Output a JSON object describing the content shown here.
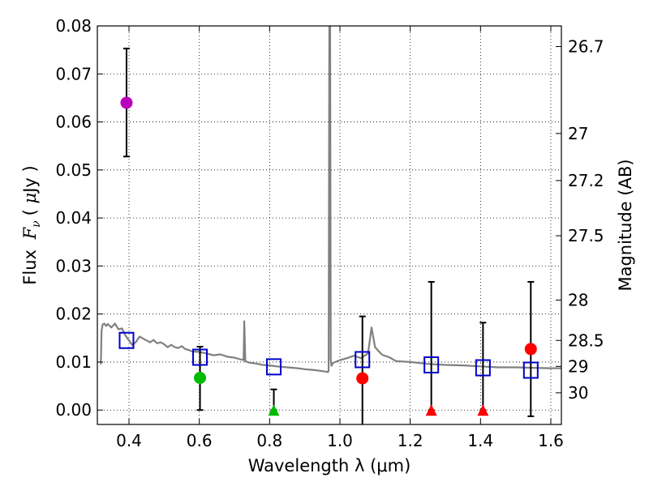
{
  "chart_data": {
    "type": "scatter",
    "xlabel": "Wavelength  λ (μm)",
    "ylabel": "Flux  Fν  ( μJy )",
    "ylabel_right": "Magnitude (AB)",
    "xlim": [
      0.31,
      1.63
    ],
    "ylim": [
      -0.003,
      0.08
    ],
    "grid": true,
    "x_ticks": [
      0.4,
      0.6,
      0.8,
      1.0,
      1.2,
      1.4,
      1.6
    ],
    "x_tick_labels": [
      "0.4",
      "0.6",
      "0.8",
      "1.0",
      "1.2",
      "1.4",
      "1.6"
    ],
    "y_ticks": [
      0.0,
      0.01,
      0.02,
      0.03,
      0.04,
      0.05,
      0.06,
      0.07,
      0.08
    ],
    "y_tick_labels": [
      "0.00",
      "0.01",
      "0.02",
      "0.03",
      "0.04",
      "0.05",
      "0.06",
      "0.07",
      "0.08"
    ],
    "right_ticks": [
      {
        "label": "26.7",
        "flux": 0.0757
      },
      {
        "label": "27",
        "flux": 0.0576
      },
      {
        "label": "27.2",
        "flux": 0.0478
      },
      {
        "label": "27.5",
        "flux": 0.0363
      },
      {
        "label": "28",
        "flux": 0.0229
      },
      {
        "label": "28.5",
        "flux": 0.0145
      },
      {
        "label": "29",
        "flux": 0.0091
      },
      {
        "label": "30",
        "flux": 0.0036
      }
    ],
    "series": [
      {
        "name": "template-sed",
        "kind": "line",
        "color": "#808080",
        "x": [
          0.32,
          0.322,
          0.325,
          0.33,
          0.335,
          0.34,
          0.35,
          0.36,
          0.37,
          0.38,
          0.39,
          0.4,
          0.41,
          0.42,
          0.43,
          0.44,
          0.45,
          0.46,
          0.47,
          0.48,
          0.49,
          0.5,
          0.51,
          0.52,
          0.53,
          0.54,
          0.55,
          0.56,
          0.57,
          0.58,
          0.6,
          0.62,
          0.64,
          0.66,
          0.68,
          0.7,
          0.72,
          0.726,
          0.728,
          0.731,
          0.734,
          0.74,
          0.76,
          0.78,
          0.8,
          0.82,
          0.85,
          0.88,
          0.9,
          0.93,
          0.95,
          0.96,
          0.966,
          0.968,
          0.97,
          0.972,
          0.974,
          0.976,
          0.98,
          1.0,
          1.02,
          1.04,
          1.06,
          1.08,
          1.09,
          1.1,
          1.12,
          1.14,
          1.16,
          1.2,
          1.25,
          1.3,
          1.35,
          1.4,
          1.45,
          1.5,
          1.55,
          1.6,
          1.63
        ],
        "y": [
          0.0095,
          0.0165,
          0.0178,
          0.018,
          0.0175,
          0.0179,
          0.0172,
          0.018,
          0.0168,
          0.017,
          0.0155,
          0.0145,
          0.0135,
          0.0142,
          0.0153,
          0.0149,
          0.0145,
          0.0141,
          0.0146,
          0.0139,
          0.0141,
          0.0137,
          0.0131,
          0.0136,
          0.0131,
          0.0129,
          0.0133,
          0.0127,
          0.0125,
          0.0122,
          0.0121,
          0.0118,
          0.0114,
          0.0116,
          0.0111,
          0.0109,
          0.0105,
          0.0104,
          0.0185,
          0.0101,
          0.0101,
          0.0099,
          0.0097,
          0.0094,
          0.0093,
          0.0091,
          0.0089,
          0.0087,
          0.0085,
          0.0083,
          0.0081,
          0.008,
          0.0079,
          0.0083,
          0.083,
          0.083,
          0.0105,
          0.0092,
          0.0098,
          0.0104,
          0.0108,
          0.0113,
          0.0108,
          0.0118,
          0.0172,
          0.0131,
          0.0115,
          0.011,
          0.0102,
          0.01,
          0.0096,
          0.0094,
          0.0093,
          0.0091,
          0.0089,
          0.0089,
          0.0088,
          0.0087,
          0.0087
        ]
      },
      {
        "name": "model-fluxes",
        "kind": "open-square",
        "color": "#0000cc",
        "x": [
          0.393,
          0.602,
          0.812,
          1.064,
          1.26,
          1.407,
          1.543
        ],
        "y": [
          0.0145,
          0.011,
          0.009,
          0.0105,
          0.0094,
          0.0088,
          0.0083
        ]
      },
      {
        "name": "observed-detections",
        "kind": "filled-circle",
        "points": [
          {
            "x": 0.393,
            "y": 0.064,
            "err_low": 0.0528,
            "err_high": 0.0753,
            "color": "#bb00bb"
          },
          {
            "x": 0.602,
            "y": 0.0067,
            "err_low": 0.0,
            "err_high": 0.0132,
            "color": "#00bb00"
          },
          {
            "x": 1.064,
            "y": 0.0066,
            "err_low": -0.003,
            "err_high": 0.0195,
            "color": "#ff0000"
          },
          {
            "x": 1.543,
            "y": 0.0127,
            "err_low": -0.0013,
            "err_high": 0.0267,
            "color": "#ff0000"
          }
        ]
      },
      {
        "name": "observed-upper-limits",
        "kind": "triangle",
        "points": [
          {
            "x": 0.812,
            "y": 0.0,
            "err_low": 0.0,
            "err_high": 0.0043,
            "color": "#00bb00"
          },
          {
            "x": 1.26,
            "y": 0.0,
            "err_low": 0.0,
            "err_high": 0.0267,
            "color": "#ff0000"
          },
          {
            "x": 1.407,
            "y": 0.0,
            "err_low": 0.0,
            "err_high": 0.0182,
            "color": "#ff0000"
          }
        ]
      }
    ]
  }
}
